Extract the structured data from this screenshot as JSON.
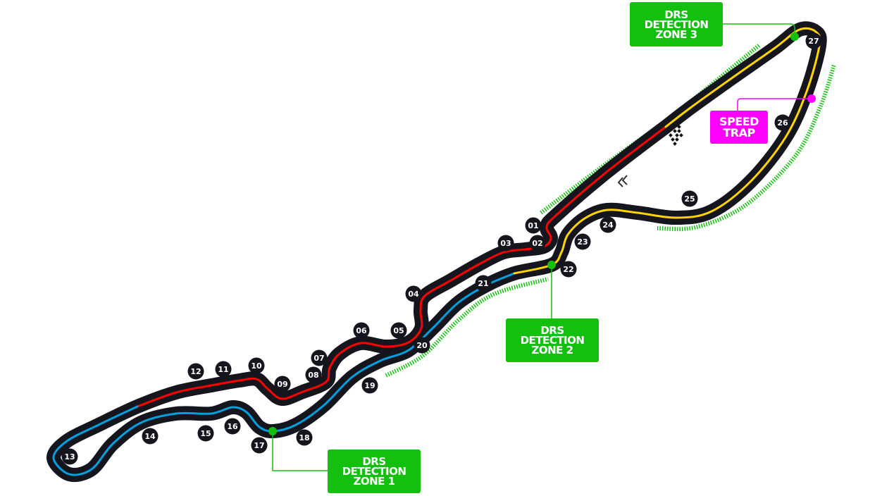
{
  "colors": {
    "track": "#15151e",
    "sector1": "#ff0000",
    "sector2": "#00a0de",
    "sector3": "#ffd400",
    "drs": "#13c00f",
    "speed_trap": "#ff00ff"
  },
  "turns": [
    "01",
    "02",
    "03",
    "04",
    "05",
    "06",
    "07",
    "08",
    "09",
    "10",
    "11",
    "12",
    "13",
    "14",
    "15",
    "16",
    "17",
    "18",
    "19",
    "20",
    "21",
    "22",
    "23",
    "24",
    "25",
    "26",
    "27"
  ],
  "drs_detection_zones": [
    {
      "line1": "DRS",
      "line2": "DETECTION",
      "line3": "ZONE 1"
    },
    {
      "line1": "DRS",
      "line2": "DETECTION",
      "line3": "ZONE 2"
    },
    {
      "line1": "DRS",
      "line2": "DETECTION",
      "line3": "ZONE 3"
    }
  ],
  "speed_trap": {
    "line1": "SPEED",
    "line2": "TRAP"
  },
  "icons": {
    "start_finish": "chequered-flag-icon",
    "direction": "double-chevron-left-icon"
  }
}
